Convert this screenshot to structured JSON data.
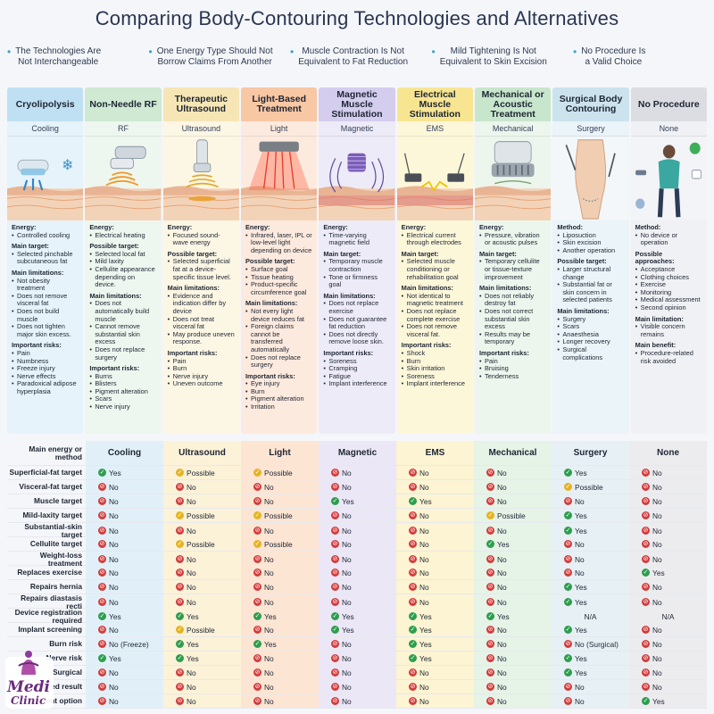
{
  "title": "Comparing Body-Contouring Technologies and Alternatives",
  "bullets": [
    "The Technologies Are\nNot Interchangeable",
    "One Energy Type Should Not\nBorrow Claims From Another",
    "Muscle Contraction Is Not\nEquivalent to Fat Reduction",
    "Mild Tightening Is Not\nEquivalent to Skin Excision",
    "No Procedure Is\na Valid Choice"
  ],
  "columns": [
    {
      "name": "Cryolipolysis",
      "tag": "Cooling",
      "icon": "cooling-applicator-icon",
      "head_color": "#bfe0f2",
      "body_color": "#e6f3fa",
      "sections": [
        {
          "label": "Energy:",
          "items": [
            "Controlled cooling"
          ]
        },
        {
          "label": "Main target:",
          "items": [
            "Selected pinchable subcutaneous fat"
          ]
        },
        {
          "label": "Main limitations:",
          "items": [
            "Not obesity treatment",
            "Does not remove visceral fat",
            "Does not build muscle",
            "Does not tighten major skin excess."
          ]
        },
        {
          "label": "Important risks:",
          "items": [
            "Pain",
            "Numbness",
            "Freeze injury",
            "Nerve effects",
            "Paradoxical adipose hyperplasia"
          ]
        }
      ]
    },
    {
      "name": "Non-Needle RF",
      "tag": "RF",
      "icon": "rf-handpiece-icon",
      "head_color": "#cfe9d2",
      "body_color": "#eef7ef",
      "sections": [
        {
          "label": "Energy:",
          "items": [
            "Electrical heating"
          ]
        },
        {
          "label": "Possible target:",
          "items": [
            "Selected local fat",
            "Mild laxity",
            "Cellulite appearance depending on device."
          ]
        },
        {
          "label": "Main limitations:",
          "items": [
            "Does not automatically build muscle",
            "Cannot remove substantial skin excess",
            "Does not replace surgery"
          ]
        },
        {
          "label": "Important risks:",
          "items": [
            "Burns",
            "Blisters",
            "Pigment alteration",
            "Scars",
            "Nerve injury"
          ]
        }
      ]
    },
    {
      "name": "Therapeutic Ultrasound",
      "tag": "Ultrasound",
      "icon": "ultrasound-transducer-icon",
      "head_color": "#f6e6b5",
      "body_color": "#fcf6e4",
      "sections": [
        {
          "label": "Energy:",
          "items": [
            "Focused sound-wave energy"
          ]
        },
        {
          "label": "Possible target:",
          "items": [
            "Selected superficial fat at a device-specific tissue level."
          ]
        },
        {
          "label": "Main limitations:",
          "items": [
            "Evidence and indication differ by device",
            "Does not treat visceral fat",
            "May produce uneven response."
          ]
        },
        {
          "label": "Important risks:",
          "items": [
            "Pain",
            "Burn",
            "Nerve injury",
            "Uneven outcome"
          ]
        }
      ]
    },
    {
      "name": "Light-Based Treatment",
      "tag": "Light",
      "icon": "light-panel-icon",
      "head_color": "#f8c7a4",
      "body_color": "#fdeade",
      "sections": [
        {
          "label": "Energy:",
          "items": [
            "Infrared, laser, IPL or low-level light depending on device"
          ]
        },
        {
          "label": "Possible target:",
          "items": [
            "Surface goal",
            "Tissue heating",
            "Product-specific circumference goal"
          ]
        },
        {
          "label": "Main limitations:",
          "items": [
            "Not every light device reduces fat",
            "Foreign claims cannot be transferred automatically",
            "Does not replace surgery"
          ]
        },
        {
          "label": "Important risks:",
          "items": [
            "Eye injury",
            "Burn",
            "Pigment alteration",
            "Irritation"
          ]
        }
      ]
    },
    {
      "name": "Magnetic Muscle Stimulation",
      "tag": "Magnetic",
      "icon": "magnetic-coil-icon",
      "head_color": "#d4cdee",
      "body_color": "#eeebf8",
      "sections": [
        {
          "label": "Energy:",
          "items": [
            "Time-varying magnetic field"
          ]
        },
        {
          "label": "Main target:",
          "items": [
            "Temporary muscle contraction",
            "Tone or firmness goal"
          ]
        },
        {
          "label": "Main limitations:",
          "items": [
            "Does not replace exercise",
            "Does not guarantee fat reduction",
            "Does not directly remove loose skin."
          ]
        },
        {
          "label": "Important risks:",
          "items": [
            "Soreness",
            "Cramping",
            "Fatigue",
            "Implant interference"
          ]
        }
      ]
    },
    {
      "name": "Electrical Muscle Stimulation",
      "tag": "EMS",
      "icon": "ems-electrodes-icon",
      "head_color": "#f8e592",
      "body_color": "#fdf7da",
      "sections": [
        {
          "label": "Energy:",
          "items": [
            "Electrical current through electrodes"
          ]
        },
        {
          "label": "Main target:",
          "items": [
            "Selected muscle conditioning or rehabilitation goal"
          ]
        },
        {
          "label": "Main limitations:",
          "items": [
            "Not identical to magnetic treatment",
            "Does not replace complete exercise",
            "Does not remove visceral fat."
          ]
        },
        {
          "label": "Important risks:",
          "items": [
            "Shock",
            "Burn",
            "Skin irritation",
            "Soreness",
            "Implant interference"
          ]
        }
      ]
    },
    {
      "name": "Mechanical or Acoustic Treatment",
      "tag": "Mechanical",
      "icon": "roller-device-icon",
      "head_color": "#c8e6cc",
      "body_color": "#ecf6ed",
      "sections": [
        {
          "label": "Energy:",
          "items": [
            "Pressure, vibration or acoustic pulses"
          ]
        },
        {
          "label": "Main target:",
          "items": [
            "Temporary cellulite or tissue-texture improvement"
          ]
        },
        {
          "label": "Main limitations:",
          "items": [
            "Does not reliably destroy fat",
            "Does not correct substantial skin excess",
            "Results may be temporary"
          ]
        },
        {
          "label": "Important risks:",
          "items": [
            "Pain",
            "Bruising",
            "Tenderness"
          ]
        }
      ]
    },
    {
      "name": "Surgical Body Contouring",
      "tag": "Surgery",
      "icon": "surgery-torso-icon",
      "head_color": "#cce3ee",
      "body_color": "#ebf4f8",
      "sections": [
        {
          "label": "Method:",
          "items": [
            "Liposuction",
            "Skin excision",
            "Another operation"
          ]
        },
        {
          "label": "Possible target:",
          "items": [
            "Larger structural change",
            "Substantial fat or skin concern in selected patients"
          ]
        },
        {
          "label": "Main limitations:",
          "items": [
            "Surgery",
            "Scars",
            "Anaesthesia",
            "Longer recovery",
            "Surgical complications"
          ]
        }
      ]
    },
    {
      "name": "No Procedure",
      "tag": "None",
      "icon": "person-lifestyle-icon",
      "head_color": "#dcdde2",
      "body_color": "#f0f1f4",
      "sections": [
        {
          "label": "Method:",
          "items": [
            "No device or operation"
          ]
        },
        {
          "label": "Possible approaches:",
          "items": [
            "Acceptance",
            "Clothing choices",
            "Exercise",
            "Monitoring",
            "Medical assessment",
            "Second opinion"
          ]
        },
        {
          "label": "Main limitation:",
          "items": [
            "Visible concern remains"
          ]
        },
        {
          "label": "Main benefit:",
          "items": [
            "Procedure-related risk avoided"
          ]
        }
      ]
    }
  ],
  "table": {
    "header_label": "Main energy or method",
    "headers": [
      "Cooling",
      "Ultrasound",
      "Light",
      "Magnetic",
      "EMS",
      "Mechanical",
      "Surgery",
      "None"
    ],
    "rows": [
      {
        "label": "Superficial-fat target",
        "cells": [
          [
            "yes",
            "Yes"
          ],
          [
            "possible",
            "Possible"
          ],
          [
            "possible",
            "Possible"
          ],
          [
            "no",
            "No"
          ],
          [
            "no",
            "No"
          ],
          [
            "no",
            "No"
          ],
          [
            "yes",
            "Yes"
          ],
          [
            "no",
            "No"
          ]
        ]
      },
      {
        "label": "Visceral-fat target",
        "cells": [
          [
            "no",
            "No"
          ],
          [
            "no",
            "No"
          ],
          [
            "no",
            "No"
          ],
          [
            "no",
            "No"
          ],
          [
            "no",
            "No"
          ],
          [
            "no",
            "No"
          ],
          [
            "possible",
            "Possible"
          ],
          [
            "no",
            "No"
          ]
        ]
      },
      {
        "label": "Muscle target",
        "cells": [
          [
            "no",
            "No"
          ],
          [
            "no",
            "No"
          ],
          [
            "no",
            "No"
          ],
          [
            "yes",
            "Yes"
          ],
          [
            "yes",
            "Yes"
          ],
          [
            "no",
            "No"
          ],
          [
            "no",
            "No"
          ],
          [
            "no",
            "No"
          ]
        ]
      },
      {
        "label": "Mild-laxity target",
        "cells": [
          [
            "no",
            "No"
          ],
          [
            "possible",
            "Possible"
          ],
          [
            "possible",
            "Possible"
          ],
          [
            "no",
            "No"
          ],
          [
            "no",
            "No"
          ],
          [
            "possible",
            "Possible"
          ],
          [
            "yes",
            "Yes"
          ],
          [
            "no",
            "No"
          ]
        ]
      },
      {
        "label": "Substantial-skin target",
        "cells": [
          [
            "no",
            "No"
          ],
          [
            "no",
            "No"
          ],
          [
            "no",
            "No"
          ],
          [
            "no",
            "No"
          ],
          [
            "no",
            "No"
          ],
          [
            "no",
            "No"
          ],
          [
            "yes",
            "Yes"
          ],
          [
            "no",
            "No"
          ]
        ]
      },
      {
        "label": "Cellulite target",
        "cells": [
          [
            "no",
            "No"
          ],
          [
            "possible",
            "Possible"
          ],
          [
            "possible",
            "Possible"
          ],
          [
            "no",
            "No"
          ],
          [
            "no",
            "No"
          ],
          [
            "yes",
            "Yes"
          ],
          [
            "no",
            "No"
          ],
          [
            "no",
            "No"
          ]
        ]
      },
      {
        "label": "Weight-loss treatment",
        "cells": [
          [
            "no",
            "No"
          ],
          [
            "no",
            "No"
          ],
          [
            "no",
            "No"
          ],
          [
            "no",
            "No"
          ],
          [
            "no",
            "No"
          ],
          [
            "no",
            "No"
          ],
          [
            "no",
            "No"
          ],
          [
            "no",
            "No"
          ]
        ]
      },
      {
        "label": "Replaces exercise",
        "cells": [
          [
            "no",
            "No"
          ],
          [
            "no",
            "No"
          ],
          [
            "no",
            "No"
          ],
          [
            "no",
            "No"
          ],
          [
            "no",
            "No"
          ],
          [
            "no",
            "No"
          ],
          [
            "no",
            "No"
          ],
          [
            "yes",
            "Yes"
          ]
        ]
      },
      {
        "label": "Repairs hernia",
        "cells": [
          [
            "no",
            "No"
          ],
          [
            "no",
            "No"
          ],
          [
            "no",
            "No"
          ],
          [
            "no",
            "No"
          ],
          [
            "no",
            "No"
          ],
          [
            "no",
            "No"
          ],
          [
            "yes",
            "Yes"
          ],
          [
            "no",
            "No"
          ]
        ]
      },
      {
        "label": "Repairs diastasis recti",
        "cells": [
          [
            "no",
            "No"
          ],
          [
            "no",
            "No"
          ],
          [
            "no",
            "No"
          ],
          [
            "no",
            "No"
          ],
          [
            "no",
            "No"
          ],
          [
            "no",
            "No"
          ],
          [
            "yes",
            "Yes"
          ],
          [
            "no",
            "No"
          ]
        ]
      },
      {
        "label": "Device registration required",
        "cells": [
          [
            "yes",
            "Yes"
          ],
          [
            "yes",
            "Yes"
          ],
          [
            "yes",
            "Yes"
          ],
          [
            "yes",
            "Yes"
          ],
          [
            "yes",
            "Yes"
          ],
          [
            "yes",
            "Yes"
          ],
          [
            "na",
            "N/A"
          ],
          [
            "na",
            "N/A"
          ]
        ]
      },
      {
        "label": "Implant screening",
        "cells": [
          [
            "no",
            "No"
          ],
          [
            "possible",
            "Possible"
          ],
          [
            "no",
            "No"
          ],
          [
            "yes",
            "Yes"
          ],
          [
            "yes",
            "Yes"
          ],
          [
            "no",
            "No"
          ],
          [
            "yes",
            "Yes"
          ],
          [
            "no",
            "No"
          ]
        ]
      },
      {
        "label": "Burn risk",
        "cells": [
          [
            "no",
            "No (Freeze)"
          ],
          [
            "yes",
            "Yes"
          ],
          [
            "yes",
            "Yes"
          ],
          [
            "no",
            "No"
          ],
          [
            "yes",
            "Yes"
          ],
          [
            "no",
            "No"
          ],
          [
            "no",
            "No (Surgical)"
          ],
          [
            "no",
            "No"
          ]
        ]
      },
      {
        "label": "Nerve risk",
        "cells": [
          [
            "yes",
            "Yes"
          ],
          [
            "yes",
            "Yes"
          ],
          [
            "no",
            "No"
          ],
          [
            "no",
            "No"
          ],
          [
            "yes",
            "Yes"
          ],
          [
            "no",
            "No"
          ],
          [
            "yes",
            "Yes"
          ],
          [
            "no",
            "No"
          ]
        ]
      },
      {
        "label": "Surgical",
        "cells": [
          [
            "no",
            "No"
          ],
          [
            "no",
            "No"
          ],
          [
            "no",
            "No"
          ],
          [
            "no",
            "No"
          ],
          [
            "no",
            "No"
          ],
          [
            "no",
            "No"
          ],
          [
            "yes",
            "Yes"
          ],
          [
            "no",
            "No"
          ]
        ]
      },
      {
        "label": "ed result",
        "cells": [
          [
            "no",
            "No"
          ],
          [
            "no",
            "No"
          ],
          [
            "no",
            "No"
          ],
          [
            "no",
            "No"
          ],
          [
            "no",
            "No"
          ],
          [
            "no",
            "No"
          ],
          [
            "no",
            "No"
          ],
          [
            "no",
            "No"
          ]
        ]
      },
      {
        "label": "ent option",
        "cells": [
          [
            "no",
            "No"
          ],
          [
            "no",
            "No"
          ],
          [
            "no",
            "No"
          ],
          [
            "no",
            "No"
          ],
          [
            "no",
            "No"
          ],
          [
            "no",
            "No"
          ],
          [
            "no",
            "No"
          ],
          [
            "yes",
            "Yes"
          ]
        ]
      }
    ]
  },
  "table_col_colors": [
    "#e1f0f8",
    "#fcf2d8",
    "#fde5d4",
    "#ebe7f6",
    "#fcf4d2",
    "#e6f3e7",
    "#e6f0f5",
    "#ececef"
  ],
  "logo": {
    "line1": "Medi",
    "line2": "Clinic",
    "icon": "clinic-logo-icon"
  }
}
